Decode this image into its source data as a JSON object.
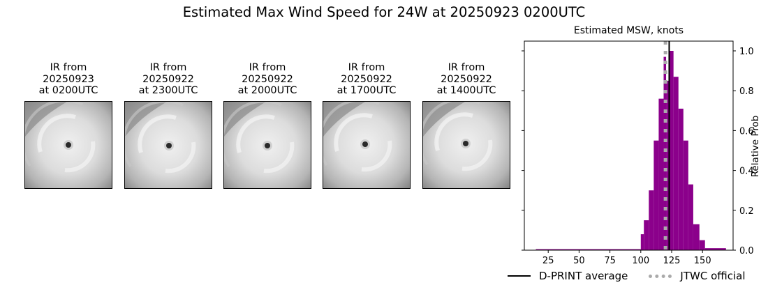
{
  "figure": {
    "title": "Estimated Max Wind Speed for 24W at 20250923 0200UTC"
  },
  "ir_panels": [
    {
      "label": "IR from\n20250923\nat 0200UTC",
      "eye_x": 62,
      "eye_y": 62
    },
    {
      "label": "IR from\n20250922\nat 2300UTC",
      "eye_x": 63,
      "eye_y": 63
    },
    {
      "label": "IR from\n20250922\nat 2000UTC",
      "eye_x": 62,
      "eye_y": 63
    },
    {
      "label": "IR from\n20250922\nat 1700UTC",
      "eye_x": 60,
      "eye_y": 61
    },
    {
      "label": "IR from\n20250922\nat 1400UTC",
      "eye_x": 61,
      "eye_y": 60
    }
  ],
  "chart_data": {
    "type": "bar",
    "title": "Estimated MSW, knots",
    "xlabel": "",
    "ylabel": "Relative Prob",
    "xlim": [
      0,
      175
    ],
    "ylim": [
      0,
      1.05
    ],
    "xticks": [
      25,
      50,
      75,
      100,
      125,
      150
    ],
    "yticks": [
      "0.0",
      "0.2",
      "0.4",
      "0.6",
      "0.8",
      "1.0"
    ],
    "bar_color": "#8b008b",
    "bins": [
      {
        "x0": 15,
        "x1": 100,
        "value": 0.005
      },
      {
        "x0": 100,
        "x1": 102.5,
        "value": 0.08
      },
      {
        "x0": 102.5,
        "x1": 106.5,
        "value": 0.15
      },
      {
        "x0": 106.5,
        "x1": 110.5,
        "value": 0.3
      },
      {
        "x0": 110.5,
        "x1": 114.5,
        "value": 0.55
      },
      {
        "x0": 114.5,
        "x1": 118.5,
        "value": 0.76
      },
      {
        "x0": 118.5,
        "x1": 120.5,
        "value": 0.97
      },
      {
        "x0": 120.5,
        "x1": 122.5,
        "value": 0.85
      },
      {
        "x0": 122.5,
        "x1": 126.5,
        "value": 1.0
      },
      {
        "x0": 126.5,
        "x1": 130.5,
        "value": 0.87
      },
      {
        "x0": 130.5,
        "x1": 134.5,
        "value": 0.71
      },
      {
        "x0": 134.5,
        "x1": 138.5,
        "value": 0.55
      },
      {
        "x0": 138.5,
        "x1": 142.5,
        "value": 0.33
      },
      {
        "x0": 142.5,
        "x1": 147.5,
        "value": 0.13
      },
      {
        "x0": 147.5,
        "x1": 152,
        "value": 0.05
      },
      {
        "x0": 152,
        "x1": 169,
        "value": 0.01
      }
    ],
    "dprint_average": 123,
    "jtwc_official": 120,
    "legend": [
      {
        "label": "D-PRINT average",
        "style": "solid",
        "color": "#000000"
      },
      {
        "label": "JTWC official",
        "style": "dotted",
        "color": "#aaaaaa"
      }
    ],
    "legend_position": "bottom"
  }
}
